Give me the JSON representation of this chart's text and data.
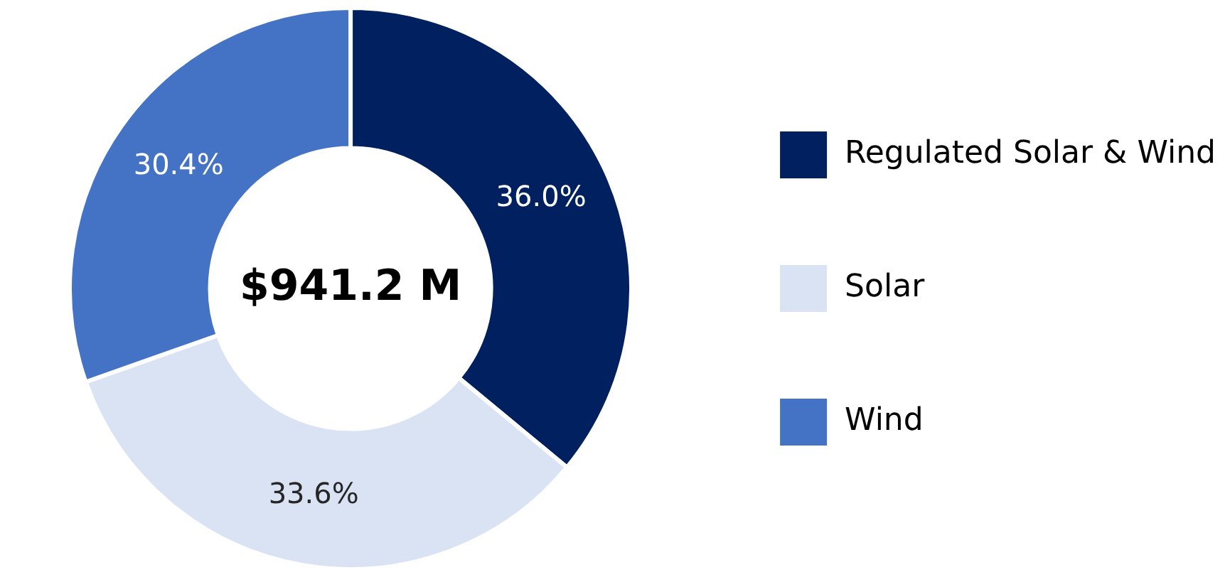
{
  "chart_data": {
    "type": "donut",
    "categories": [
      "Regulated Solar & Wind",
      "Solar",
      "Wind"
    ],
    "values": [
      36.0,
      33.6,
      30.4
    ],
    "colors": [
      "#002060",
      "#dae3f3",
      "#4472c4"
    ],
    "value_labels": [
      "36.0%",
      "33.6%",
      "30.4%"
    ],
    "legend": "right",
    "annotations": [
      "$941.2 M"
    ]
  }
}
